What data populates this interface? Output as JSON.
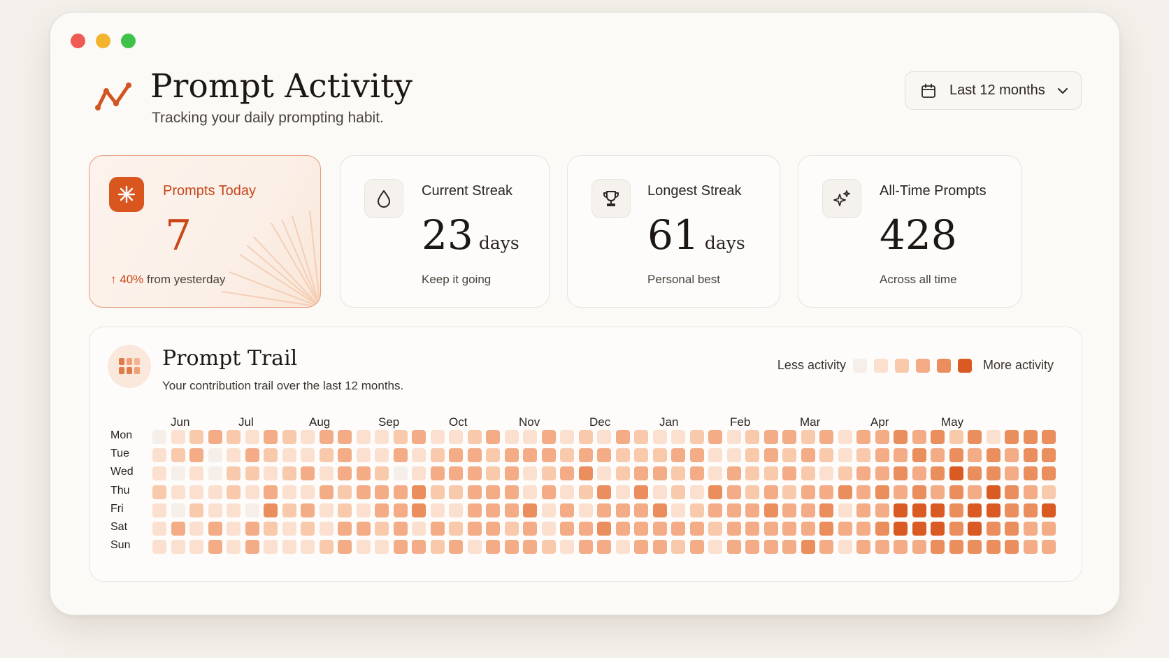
{
  "window": {
    "controls": [
      "close",
      "minimize",
      "maximize"
    ]
  },
  "header": {
    "title": "Prompt Activity",
    "subtitle": "Tracking your daily prompting habit.",
    "logo_icon": "activity-line-icon",
    "range_label": "Last 12 months",
    "range_icon": "calendar-icon"
  },
  "cards": {
    "today": {
      "label": "Prompts Today",
      "value": "7",
      "change": "40%",
      "change_text": "from yesterday",
      "icon": "asterisk-icon"
    },
    "current": {
      "label": "Current Streak",
      "value": "23",
      "unit": "days",
      "sub": "Keep it going",
      "icon": "drop-icon"
    },
    "longest": {
      "label": "Longest Streak",
      "value": "61",
      "unit": "days",
      "sub": "Personal best",
      "icon": "trophy-icon"
    },
    "alltime": {
      "label": "All-Time Prompts",
      "value": "428",
      "sub": "Across all time",
      "icon": "sparkle-icon"
    }
  },
  "trail": {
    "title": "Prompt Trail",
    "subtitle": "Your contribution trail over the last 12 months.",
    "legend_less": "Less activity",
    "legend_more": "More activity",
    "months": [
      "Jun",
      "Jul",
      "Aug",
      "Sep",
      "Oct",
      "Nov",
      "Dec",
      "Jan",
      "Feb",
      "Mar",
      "Apr",
      "May"
    ],
    "days": [
      "Mon",
      "Tue",
      "Wed",
      "Thu",
      "Fri",
      "Sat",
      "Sun"
    ],
    "colors": [
      "#f5eee9",
      "#fbe0cf",
      "#f8c9ab",
      "#f3ac86",
      "#ea8e5d",
      "#d95a22"
    ],
    "levels": [
      [
        0,
        1,
        2,
        3,
        2,
        1,
        3,
        2,
        1,
        3,
        3,
        1,
        1,
        2,
        3,
        1,
        1,
        2,
        3,
        1,
        1,
        3,
        1,
        2,
        1,
        3,
        2,
        1,
        1,
        2,
        3,
        1,
        2,
        3,
        3,
        2,
        3,
        1,
        3,
        3,
        4,
        3,
        4,
        2,
        4,
        1,
        4,
        4,
        4
      ],
      [
        1,
        2,
        3,
        0,
        1,
        3,
        2,
        1,
        1,
        2,
        3,
        1,
        1,
        3,
        1,
        2,
        3,
        3,
        2,
        3,
        3,
        3,
        2,
        3,
        3,
        2,
        2,
        2,
        3,
        3,
        1,
        1,
        2,
        3,
        2,
        3,
        2,
        1,
        2,
        3,
        3,
        4,
        3,
        4,
        3,
        4,
        3,
        4,
        4
      ],
      [
        1,
        0,
        1,
        0,
        2,
        2,
        1,
        2,
        3,
        1,
        3,
        3,
        2,
        0,
        1,
        3,
        3,
        3,
        2,
        3,
        1,
        2,
        3,
        4,
        1,
        2,
        3,
        3,
        2,
        3,
        1,
        3,
        2,
        2,
        3,
        2,
        1,
        2,
        3,
        3,
        4,
        3,
        4,
        5,
        4,
        4,
        3,
        4,
        4
      ],
      [
        2,
        1,
        1,
        1,
        2,
        1,
        3,
        1,
        1,
        3,
        2,
        3,
        3,
        3,
        4,
        2,
        2,
        3,
        3,
        3,
        1,
        3,
        1,
        2,
        4,
        1,
        4,
        1,
        2,
        1,
        4,
        3,
        2,
        3,
        2,
        3,
        3,
        4,
        3,
        4,
        3,
        4,
        3,
        4,
        3,
        5,
        4,
        3,
        2
      ],
      [
        1,
        0,
        2,
        1,
        1,
        0,
        4,
        2,
        3,
        1,
        2,
        1,
        3,
        3,
        4,
        1,
        1,
        3,
        3,
        3,
        4,
        1,
        3,
        1,
        3,
        3,
        3,
        4,
        1,
        2,
        3,
        3,
        3,
        4,
        3,
        3,
        4,
        1,
        3,
        3,
        5,
        5,
        5,
        4,
        5,
        5,
        4,
        4,
        5
      ],
      [
        1,
        3,
        1,
        3,
        1,
        3,
        2,
        1,
        2,
        1,
        3,
        3,
        2,
        3,
        1,
        3,
        2,
        3,
        3,
        2,
        3,
        1,
        3,
        3,
        4,
        3,
        3,
        3,
        3,
        3,
        2,
        3,
        3,
        3,
        3,
        3,
        4,
        3,
        3,
        4,
        5,
        5,
        5,
        4,
        5,
        4,
        4,
        3,
        3
      ],
      [
        1,
        1,
        1,
        3,
        1,
        3,
        1,
        1,
        1,
        2,
        3,
        1,
        1,
        3,
        3,
        2,
        3,
        1,
        3,
        3,
        3,
        2,
        1,
        3,
        3,
        1,
        3,
        3,
        2,
        3,
        1,
        3,
        3,
        3,
        3,
        4,
        3,
        1,
        3,
        3,
        3,
        3,
        4,
        4,
        4,
        4,
        4,
        3,
        3
      ]
    ]
  }
}
